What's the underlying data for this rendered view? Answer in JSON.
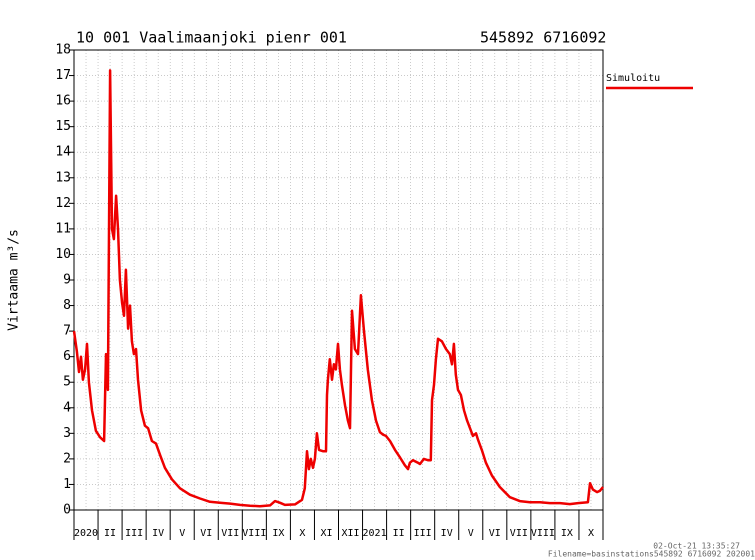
{
  "chart_data": {
    "type": "line",
    "title": "10 001 Vaalimaanjoki pienr 001",
    "subtitle": "545892 6716092",
    "y_label": "Virtaama m³/s",
    "timestamp": "02-Oct-21 13:35:27",
    "filename": "Filename=basinstations545892 6716092 202001",
    "xlim": [
      0,
      22
    ],
    "xticks": [
      {
        "value": 0,
        "label": "2020"
      },
      {
        "value": 1,
        "label": "II"
      },
      {
        "value": 2,
        "label": "III"
      },
      {
        "value": 3,
        "label": "IV"
      },
      {
        "value": 4,
        "label": "V"
      },
      {
        "value": 5,
        "label": "VI"
      },
      {
        "value": 6,
        "label": "VII"
      },
      {
        "value": 7,
        "label": "VIII"
      },
      {
        "value": 8,
        "label": "IX"
      },
      {
        "value": 9,
        "label": "X"
      },
      {
        "value": 10,
        "label": "XI"
      },
      {
        "value": 11,
        "label": "XII"
      },
      {
        "value": 12,
        "label": "2021"
      },
      {
        "value": 13,
        "label": "II"
      },
      {
        "value": 14,
        "label": "III"
      },
      {
        "value": 15,
        "label": "IV"
      },
      {
        "value": 16,
        "label": "V"
      },
      {
        "value": 17,
        "label": "VI"
      },
      {
        "value": 18,
        "label": "VII"
      },
      {
        "value": 19,
        "label": "VIII"
      },
      {
        "value": 20,
        "label": "IX"
      },
      {
        "value": 21,
        "label": "X"
      }
    ],
    "ylim": [
      0,
      18
    ],
    "yticks": [
      0,
      1,
      2,
      3,
      4,
      5,
      6,
      7,
      8,
      9,
      10,
      11,
      12,
      13,
      14,
      15,
      16,
      17,
      18
    ],
    "grid": true,
    "x": [
      0,
      0.12,
      0.21,
      0.29,
      0.37,
      0.46,
      0.54,
      0.62,
      0.75,
      0.91,
      1.08,
      1.25,
      1.33,
      1.41,
      1.5,
      1.58,
      1.66,
      1.75,
      1.83,
      1.91,
      2.0,
      2.08,
      2.16,
      2.25,
      2.33,
      2.41,
      2.49,
      2.58,
      2.66,
      2.79,
      2.95,
      3.08,
      3.24,
      3.41,
      3.58,
      3.78,
      4.07,
      4.41,
      4.82,
      5.24,
      5.65,
      6.07,
      6.49,
      6.9,
      7.32,
      7.73,
      8.15,
      8.36,
      8.57,
      8.77,
      9.19,
      9.48,
      9.6,
      9.69,
      9.77,
      9.85,
      9.94,
      10.02,
      10.1,
      10.19,
      10.35,
      10.48,
      10.52,
      10.56,
      10.64,
      10.73,
      10.81,
      10.89,
      10.98,
      11.06,
      11.14,
      11.27,
      11.39,
      11.48,
      11.56,
      11.68,
      11.81,
      11.93,
      12.06,
      12.22,
      12.39,
      12.56,
      12.72,
      12.85,
      12.97,
      13.14,
      13.35,
      13.56,
      13.76,
      13.89,
      13.97,
      14.1,
      14.3,
      14.39,
      14.55,
      14.72,
      14.84,
      14.89,
      14.97,
      15.05,
      15.14,
      15.3,
      15.47,
      15.63,
      15.72,
      15.8,
      15.88,
      15.97,
      16.09,
      16.22,
      16.35,
      16.47,
      16.59,
      16.72,
      16.8,
      16.96,
      17.13,
      17.38,
      17.71,
      18.13,
      18.54,
      18.96,
      19.38,
      19.79,
      20.21,
      20.62,
      20.96,
      21.37,
      21.46,
      21.58,
      21.75,
      21.87,
      22.0
    ],
    "series": [
      {
        "name": "Simuloitu",
        "color": "#ee0000",
        "values": [
          7.0,
          6.2,
          5.4,
          6.0,
          5.1,
          5.5,
          6.5,
          5.0,
          3.9,
          3.1,
          2.85,
          2.7,
          6.1,
          4.7,
          17.2,
          11,
          10.6,
          12.3,
          11,
          9,
          8.1,
          7.6,
          9.4,
          7.1,
          8.0,
          6.6,
          6.1,
          6.3,
          5.1,
          3.9,
          3.3,
          3.2,
          2.7,
          2.6,
          2.15,
          1.65,
          1.2,
          0.85,
          0.6,
          0.45,
          0.32,
          0.28,
          0.25,
          0.2,
          0.17,
          0.15,
          0.18,
          0.35,
          0.28,
          0.2,
          0.22,
          0.4,
          0.85,
          2.3,
          1.6,
          2.0,
          1.65,
          2.0,
          3.0,
          2.35,
          2.3,
          2.3,
          4.5,
          5.1,
          5.9,
          5.1,
          5.7,
          5.5,
          6.5,
          5.5,
          4.9,
          4.1,
          3.5,
          3.2,
          7.8,
          6.3,
          6.1,
          8.4,
          7.0,
          5.5,
          4.3,
          3.5,
          3.05,
          2.95,
          2.9,
          2.7,
          2.35,
          2.05,
          1.75,
          1.6,
          1.85,
          1.95,
          1.85,
          1.8,
          2.0,
          1.95,
          1.95,
          4.3,
          4.9,
          5.9,
          6.7,
          6.6,
          6.3,
          6.1,
          5.7,
          6.5,
          5.3,
          4.7,
          4.5,
          3.9,
          3.5,
          3.2,
          2.9,
          3.0,
          2.75,
          2.35,
          1.85,
          1.35,
          0.9,
          0.5,
          0.35,
          0.3,
          0.3,
          0.27,
          0.27,
          0.23,
          0.27,
          0.3,
          1.05,
          0.8,
          0.7,
          0.75,
          0.9
        ]
      }
    ]
  }
}
